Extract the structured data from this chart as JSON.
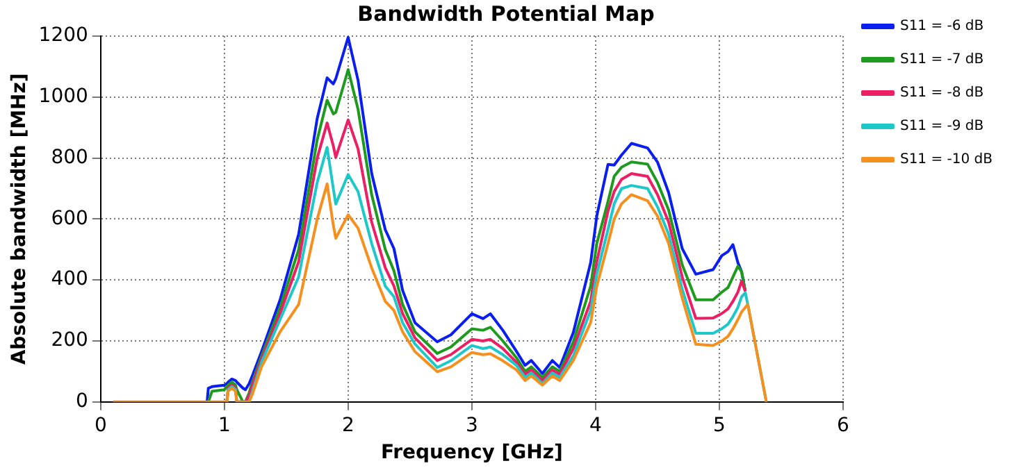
{
  "chart_data": {
    "type": "line",
    "title": "Bandwidth Potential Map",
    "xlabel": "Frequency [GHz]",
    "ylabel": "Absolute bandwidth [MHz]",
    "x": [
      0.1,
      0.86,
      0.87,
      0.9,
      1.0,
      1.02,
      1.03,
      1.06,
      1.09,
      1.1,
      1.15,
      1.17,
      1.2,
      1.23,
      1.3,
      1.45,
      1.6,
      1.75,
      1.83,
      1.88,
      1.9,
      2.0,
      2.08,
      2.19,
      2.3,
      2.37,
      2.44,
      2.54,
      2.72,
      2.83,
      3.0,
      3.09,
      3.15,
      3.25,
      3.36,
      3.43,
      3.48,
      3.57,
      3.65,
      3.71,
      3.82,
      3.96,
      4.01,
      4.1,
      4.15,
      4.21,
      4.29,
      4.42,
      4.5,
      4.59,
      4.7,
      4.81,
      4.95,
      5.02,
      5.07,
      5.11,
      5.15,
      5.18,
      5.21,
      5.23,
      5.38
    ],
    "series": [
      {
        "name": "S11 = -6 dB",
        "color": "#0a1ef0",
        "values": [
          null,
          0,
          45,
          50,
          55,
          60,
          65,
          75,
          70,
          65,
          45,
          40,
          60,
          90,
          165,
          335,
          550,
          930,
          1063,
          1043,
          1060,
          1196,
          1055,
          750,
          565,
          503,
          366,
          260,
          197,
          220,
          289,
          273,
          289,
          235,
          166,
          120,
          136,
          93,
          136,
          113,
          228,
          457,
          611,
          779,
          777,
          810,
          848,
          833,
          787,
          687,
          503,
          419,
          434,
          480,
          493,
          516,
          457,
          427,
          363,
          null,
          null
        ]
      },
      {
        "name": "S11 = -7 dB",
        "color": "#1e9b1e",
        "values": [
          null,
          null,
          0,
          35,
          40,
          50,
          55,
          65,
          55,
          40,
          0,
          0,
          30,
          70,
          150,
          310,
          500,
          860,
          990,
          945,
          950,
          1090,
          960,
          680,
          500,
          430,
          320,
          230,
          159,
          180,
          240,
          235,
          245,
          200,
          145,
          100,
          115,
          80,
          115,
          100,
          197,
          380,
          520,
          657,
          740,
          770,
          787,
          780,
          720,
          630,
          450,
          335,
          335,
          360,
          375,
          410,
          445,
          427,
          363,
          null,
          null
        ]
      },
      {
        "name": "S11 = -8 dB",
        "color": "#ec1e64",
        "values": [
          null,
          null,
          null,
          null,
          null,
          0,
          45,
          55,
          45,
          0,
          0,
          0,
          20,
          60,
          140,
          290,
          460,
          800,
          915,
          840,
          802,
          925,
          830,
          590,
          440,
          380,
          290,
          210,
          136,
          155,
          205,
          200,
          205,
          175,
          130,
          90,
          105,
          70,
          105,
          90,
          175,
          330,
          460,
          626,
          690,
          730,
          749,
          740,
          680,
          590,
          410,
          274,
          275,
          290,
          305,
          330,
          360,
          396,
          363,
          null,
          null
        ]
      },
      {
        "name": "S11 = -9 dB",
        "color": "#1ec8c8",
        "values": [
          null,
          null,
          null,
          null,
          null,
          0,
          40,
          50,
          40,
          0,
          0,
          0,
          0,
          40,
          130,
          270,
          410,
          720,
          835,
          700,
          649,
          746,
          690,
          520,
          380,
          345,
          260,
          190,
          113,
          135,
          185,
          175,
          180,
          155,
          120,
          80,
          95,
          60,
          95,
          80,
          151,
          300,
          420,
          565,
          650,
          700,
          710,
          700,
          640,
          550,
          370,
          225,
          225,
          240,
          255,
          280,
          310,
          345,
          358,
          320,
          0
        ]
      },
      {
        "name": "S11 = -10 dB",
        "color": "#f5901e",
        "values": [
          0,
          0,
          0,
          0,
          0,
          0,
          35,
          45,
          35,
          0,
          0,
          0,
          0,
          30,
          115,
          230,
          320,
          600,
          715,
          580,
          537,
          614,
          570,
          440,
          330,
          300,
          230,
          165,
          99,
          115,
          162,
          155,
          158,
          135,
          105,
          70,
          85,
          55,
          85,
          70,
          136,
          260,
          380,
          519,
          600,
          650,
          680,
          660,
          610,
          520,
          340,
          189,
          185,
          200,
          215,
          240,
          270,
          295,
          310,
          320,
          0
        ]
      }
    ],
    "xlim": [
      0,
      6
    ],
    "xticks": [
      0,
      1,
      2,
      3,
      4,
      5,
      6
    ],
    "ylim": [
      0,
      1200
    ],
    "yticks": [
      0,
      200,
      400,
      600,
      800,
      1000,
      1200
    ],
    "grid": true,
    "legend": "right",
    "marker": "none",
    "line_style": "solid"
  }
}
